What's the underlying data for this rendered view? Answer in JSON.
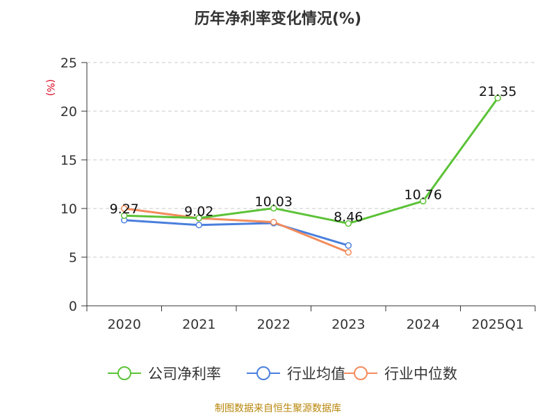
{
  "chart_data": {
    "type": "line",
    "title": "历年净利率变化情况(%)",
    "ylabel": "(%)",
    "categories": [
      "2020",
      "2021",
      "2022",
      "2023",
      "2024",
      "2025Q1"
    ],
    "ylim": [
      0,
      25
    ],
    "yticks": [
      0,
      5,
      10,
      15,
      20,
      25
    ],
    "grid": "horizontal dashed",
    "legend_position": "bottom",
    "series": [
      {
        "name": "公司净利率",
        "color": "#5bc236",
        "values": [
          9.27,
          9.02,
          10.03,
          8.46,
          10.76,
          21.35
        ],
        "labels": [
          "9.27",
          "9.02",
          "10.03",
          "8.46",
          "10.76",
          "21.35"
        ]
      },
      {
        "name": "行业均值",
        "color": "#4a7fdc",
        "values": [
          8.8,
          8.3,
          8.5,
          6.2,
          null,
          null
        ]
      },
      {
        "name": "行业中位数",
        "color": "#f28c5c",
        "values": [
          10.0,
          9.0,
          8.6,
          5.5,
          null,
          null
        ]
      }
    ]
  },
  "footer": "制图数据来自恒生聚源数据库"
}
